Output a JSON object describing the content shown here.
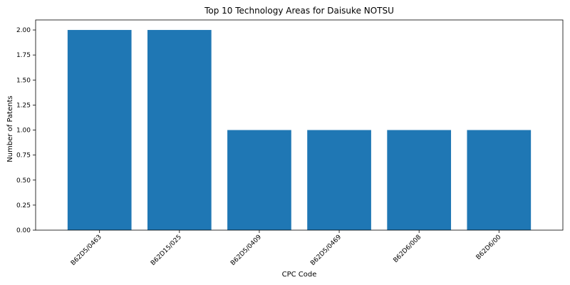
{
  "chart_data": {
    "type": "bar",
    "title": "Top 10 Technology Areas for Daisuke NOTSU",
    "xlabel": "CPC Code",
    "ylabel": "Number of Patents",
    "categories": [
      "B62D5/0463",
      "B62D15/025",
      "B62D5/0409",
      "B62D5/0469",
      "B62D6/008",
      "B62D6/00"
    ],
    "values": [
      2,
      2,
      1,
      1,
      1,
      1
    ],
    "ylim": [
      0,
      2.1
    ],
    "yticks": [
      "0.00",
      "0.25",
      "0.50",
      "0.75",
      "1.00",
      "1.25",
      "1.50",
      "1.75",
      "2.00"
    ],
    "grid": false,
    "bar_color": "#1f77b4"
  }
}
